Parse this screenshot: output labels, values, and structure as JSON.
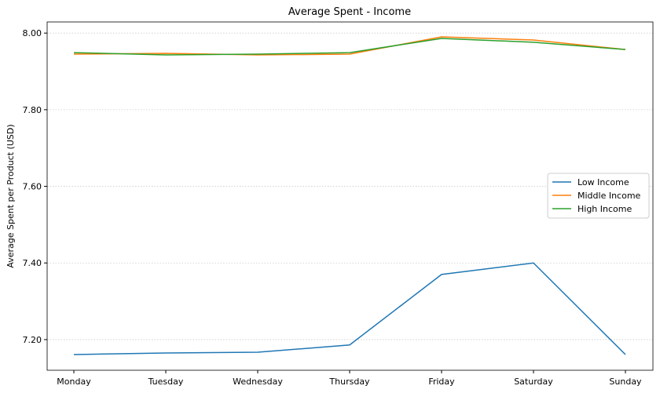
{
  "chart_data": {
    "type": "line",
    "title": "Average Spent - Income",
    "xlabel": "",
    "ylabel": "Average Spent per Product (USD)",
    "categories": [
      "Monday",
      "Tuesday",
      "Wednesday",
      "Thursday",
      "Friday",
      "Saturday",
      "Sunday"
    ],
    "ylim": [
      7.12,
      8.029
    ],
    "yticks": [
      7.2,
      7.4,
      7.6,
      7.8,
      8.0
    ],
    "ytick_labels": [
      "7.20",
      "7.40",
      "7.60",
      "7.80",
      "8.00"
    ],
    "grid": "y-dotted",
    "legend_position": "center-right",
    "series": [
      {
        "name": "Low Income",
        "color": "#1f77b4",
        "values": [
          7.161,
          7.165,
          7.167,
          7.186,
          7.37,
          7.4,
          7.161
        ]
      },
      {
        "name": "Middle Income",
        "color": "#ff7f0e",
        "values": [
          7.945,
          7.947,
          7.943,
          7.945,
          7.99,
          7.982,
          7.957
        ]
      },
      {
        "name": "High Income",
        "color": "#2ca02c",
        "values": [
          7.949,
          7.943,
          7.945,
          7.949,
          7.986,
          7.976,
          7.957
        ]
      }
    ]
  }
}
